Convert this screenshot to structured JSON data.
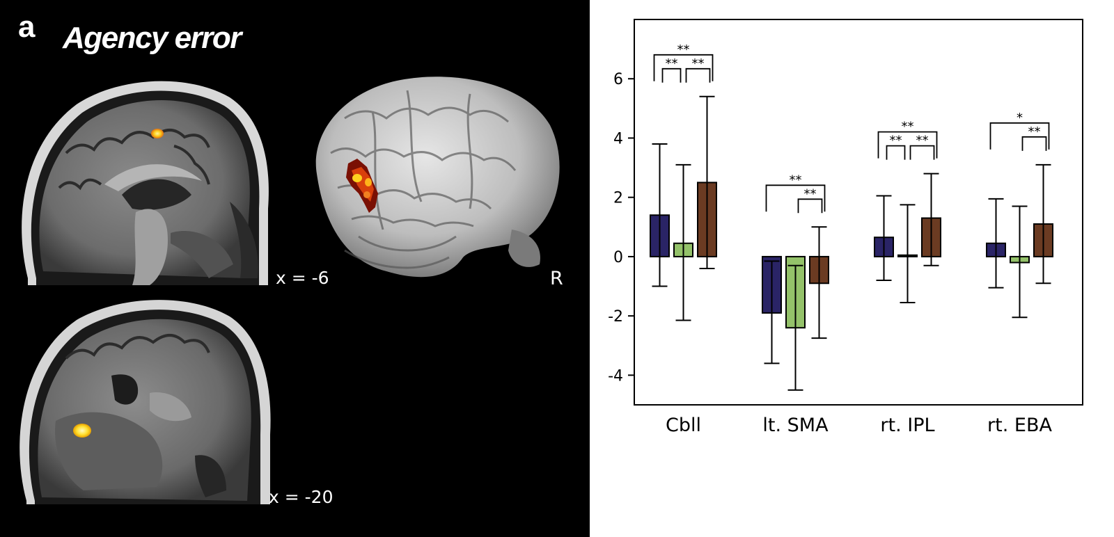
{
  "figure": {
    "panel_letter": "a",
    "title": "Agency error",
    "slice_labels": {
      "sagittal_top": "x = -6",
      "sagittal_bottom": "x = -20"
    },
    "hemisphere_label": "R"
  },
  "colors": {
    "series_1": "#2a2466",
    "series_2": "#94c26a",
    "series_3": "#6b3b22",
    "activation_hot": "#ffd21f",
    "activation_warm": "#d8400c",
    "activation_dark": "#7a1004"
  },
  "chart_data": {
    "type": "bar",
    "categories": [
      "Cbll",
      "lt. SMA",
      "rt. IPL",
      "rt. EBA"
    ],
    "ylim": [
      -5,
      8
    ],
    "yticks": [
      -4,
      -2,
      0,
      2,
      4,
      6
    ],
    "ytick_labels": [
      "-4",
      "-2",
      "0",
      "2",
      "4",
      "6"
    ],
    "grid": false,
    "legend": "none",
    "series": [
      {
        "values": [
          1.4,
          -1.9,
          0.65,
          0.45
        ],
        "err_low": [
          -1.0,
          -3.6,
          -0.8,
          -1.05
        ],
        "err_high": [
          3.8,
          -0.15,
          2.05,
          1.95
        ]
      },
      {
        "values": [
          0.45,
          -2.4,
          0.05,
          -0.2
        ],
        "err_low": [
          -2.15,
          -4.5,
          -1.55,
          -2.05
        ],
        "err_high": [
          3.1,
          -0.3,
          1.75,
          1.7
        ]
      },
      {
        "values": [
          2.5,
          -0.9,
          1.3,
          1.1
        ],
        "err_low": [
          -0.4,
          -2.75,
          -0.3,
          -0.9
        ],
        "err_high": [
          5.4,
          1.0,
          2.8,
          3.1
        ]
      }
    ],
    "significance": [
      {
        "category": 0,
        "from": 0,
        "to": 1,
        "label": "**",
        "level": 1
      },
      {
        "category": 0,
        "from": 1,
        "to": 2,
        "label": "**",
        "level": 1
      },
      {
        "category": 0,
        "from": 0,
        "to": 2,
        "label": "**",
        "level": 2
      },
      {
        "category": 1,
        "from": 1,
        "to": 2,
        "label": "**",
        "level": 1
      },
      {
        "category": 1,
        "from": 0,
        "to": 2,
        "label": "**",
        "level": 2
      },
      {
        "category": 2,
        "from": 0,
        "to": 1,
        "label": "**",
        "level": 1
      },
      {
        "category": 2,
        "from": 1,
        "to": 2,
        "label": "**",
        "level": 1
      },
      {
        "category": 2,
        "from": 0,
        "to": 2,
        "label": "**",
        "level": 2
      },
      {
        "category": 3,
        "from": 1,
        "to": 2,
        "label": "**",
        "level": 1
      },
      {
        "category": 3,
        "from": 0,
        "to": 2,
        "label": "*",
        "level": 2
      }
    ]
  }
}
